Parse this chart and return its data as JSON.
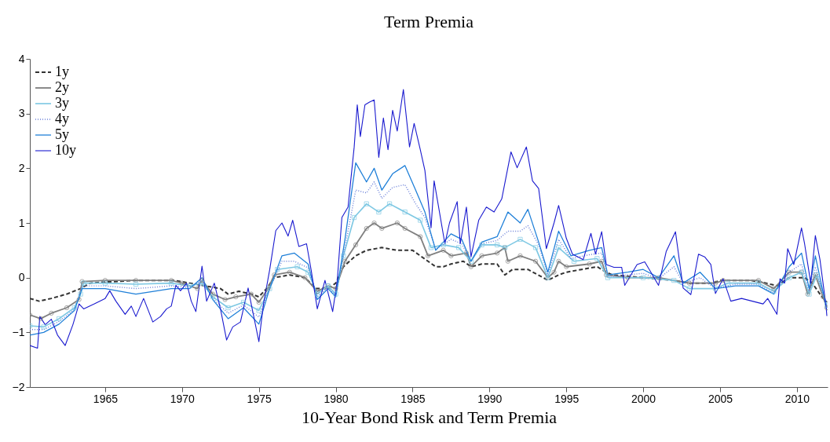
{
  "chart_data": {
    "type": "line",
    "title": "Term Premia",
    "xlabel": "10-Year Bond Risk and Term Premia",
    "xlim": [
      1960.1,
      2012.0
    ],
    "xticks": [
      1965,
      1970,
      1975,
      1980,
      1985,
      1990,
      1995,
      2000,
      2005,
      2010
    ],
    "ylim": [
      -2,
      4
    ],
    "yticks": [
      -2,
      -1,
      0,
      1,
      2,
      3,
      4
    ],
    "grid": false,
    "legend": "top left",
    "series": [
      {
        "name": "1y",
        "color": "#333333",
        "line_style": "dashed",
        "marker": "none",
        "x": [
          1960.1,
          1960.7,
          1961.5,
          1962.5,
          1963.4,
          1964,
          1965,
          1967,
          1969.5,
          1970.5,
          1971.5,
          1972.5,
          1973,
          1973.7,
          1974.5,
          1975,
          1975.5,
          1976,
          1977,
          1978,
          1978.7,
          1979.5,
          1980,
          1980.5,
          1981.3,
          1982,
          1983,
          1984,
          1985,
          1986,
          1986.5,
          1987,
          1987.5,
          1988.3,
          1988.8,
          1989.5,
          1990.5,
          1991,
          1991.5,
          1992.5,
          1993.5,
          1993.8,
          1994.5,
          1995,
          1996,
          1997,
          1997.6,
          1998,
          2000,
          2002,
          2003,
          2004.5,
          2005,
          2007,
          2008,
          2008.7,
          2009.5,
          2010.5,
          2011,
          2011.5,
          2011.95
        ],
        "values": [
          -0.38,
          -0.43,
          -0.38,
          -0.3,
          -0.2,
          -0.1,
          -0.08,
          -0.05,
          -0.05,
          -0.1,
          -0.15,
          -0.2,
          -0.3,
          -0.25,
          -0.3,
          -0.35,
          -0.2,
          0.0,
          0.05,
          0.0,
          -0.2,
          -0.2,
          -0.1,
          0.2,
          0.4,
          0.5,
          0.55,
          0.5,
          0.5,
          0.3,
          0.2,
          0.2,
          0.25,
          0.3,
          0.2,
          0.25,
          0.25,
          0.05,
          0.15,
          0.15,
          0.0,
          -0.05,
          0.05,
          0.1,
          0.15,
          0.2,
          0.1,
          0.05,
          0.0,
          -0.05,
          -0.1,
          -0.1,
          -0.05,
          -0.05,
          -0.1,
          -0.15,
          0.0,
          0.0,
          -0.1,
          -0.3,
          -0.45
        ]
      },
      {
        "name": "2y",
        "color": "#808080",
        "line_style": "solid",
        "marker": "circle",
        "x": [
          1960.1,
          1960.8,
          1961.5,
          1962.5,
          1963.3,
          1963.5,
          1965,
          1967,
          1969.3,
          1970,
          1971,
          1971.3,
          1972,
          1972.8,
          1973.5,
          1974.5,
          1975,
          1975.6,
          1976,
          1977,
          1978,
          1978.8,
          1979.5,
          1980,
          1980.6,
          1981.3,
          1982,
          1982.5,
          1983,
          1984,
          1984.5,
          1985.5,
          1986,
          1987,
          1987.5,
          1988.5,
          1988.8,
          1989.5,
          1990.5,
          1991,
          1991.2,
          1992,
          1993,
          1993.8,
          1994.2,
          1994.5,
          1995,
          1996.5,
          1997.3,
          1997.6,
          1999,
          2001,
          2003,
          2004.7,
          2005.2,
          2007.5,
          2008.5,
          2009.5,
          2010.3,
          2010.7,
          2011.2,
          2011.7,
          2011.95
        ],
        "values": [
          -0.68,
          -0.75,
          -0.65,
          -0.55,
          -0.4,
          -0.07,
          -0.05,
          -0.05,
          -0.05,
          -0.1,
          -0.2,
          -0.05,
          -0.3,
          -0.4,
          -0.35,
          -0.3,
          -0.45,
          -0.2,
          0.05,
          0.1,
          0.0,
          -0.25,
          -0.15,
          -0.2,
          0.3,
          0.6,
          0.9,
          1.0,
          0.9,
          1.0,
          0.9,
          0.75,
          0.4,
          0.5,
          0.4,
          0.45,
          0.2,
          0.4,
          0.45,
          0.55,
          0.3,
          0.4,
          0.3,
          0.0,
          0.1,
          0.3,
          0.2,
          0.25,
          0.3,
          0.05,
          0.0,
          0.0,
          -0.1,
          -0.1,
          -0.05,
          -0.05,
          -0.2,
          0.1,
          0.1,
          -0.3,
          0.05,
          -0.35,
          -0.55
        ]
      },
      {
        "name": "3y",
        "color": "#7ec8e3",
        "line_style": "solid",
        "marker": "square",
        "x": [
          1960.1,
          1961,
          1962,
          1963,
          1963.4,
          1963.6,
          1965,
          1967,
          1969.3,
          1970.5,
          1971.3,
          1972,
          1973,
          1974,
          1975,
          1975.7,
          1976.2,
          1977.5,
          1978.2,
          1978.8,
          1979.5,
          1980,
          1980.5,
          1981.2,
          1982,
          1982.8,
          1983.5,
          1984.5,
          1985.5,
          1986.2,
          1987,
          1988,
          1988.8,
          1989.5,
          1990.5,
          1991,
          1992,
          1993,
          1993.8,
          1994.5,
          1995.5,
          1997,
          1997.7,
          2000,
          2002,
          2003,
          2004.7,
          2005.5,
          2007.5,
          2008.5,
          2009.5,
          2010.3,
          2010.8,
          2011.3,
          2011.95
        ],
        "values": [
          -0.88,
          -0.9,
          -0.75,
          -0.55,
          -0.3,
          -0.1,
          -0.1,
          -0.12,
          -0.1,
          -0.15,
          -0.1,
          -0.35,
          -0.55,
          -0.45,
          -0.6,
          -0.2,
          0.15,
          0.2,
          0.1,
          -0.3,
          -0.15,
          -0.3,
          0.4,
          1.1,
          1.35,
          1.2,
          1.35,
          1.2,
          1.05,
          0.55,
          0.6,
          0.55,
          0.3,
          0.6,
          0.6,
          0.55,
          0.7,
          0.55,
          0.0,
          0.55,
          0.3,
          0.35,
          0.0,
          0.0,
          -0.05,
          -0.2,
          -0.2,
          -0.1,
          -0.1,
          -0.25,
          0.0,
          0.1,
          -0.3,
          0.05,
          -0.5
        ]
      },
      {
        "name": "4y",
        "color": "#6a7fd8",
        "line_style": "dotted",
        "marker": "none",
        "x": [
          1960.1,
          1961,
          1962,
          1963,
          1963.5,
          1965,
          1967,
          1969.3,
          1970.5,
          1971.3,
          1972,
          1973,
          1974,
          1975,
          1975.7,
          1976.5,
          1977.3,
          1978.2,
          1978.8,
          1979.5,
          1980,
          1980.6,
          1981.3,
          1982,
          1982.5,
          1983,
          1983.7,
          1984.5,
          1985.2,
          1985.8,
          1986.5,
          1987.5,
          1988.2,
          1988.8,
          1989.5,
          1990.5,
          1991.2,
          1992,
          1992.5,
          1993.2,
          1993.8,
          1994.5,
          1995.3,
          1996.5,
          1997.3,
          1997.7,
          1999,
          2000,
          2001,
          2002,
          2002.6,
          2003.7,
          2004.7,
          2006,
          2007.5,
          2008.5,
          2009.5,
          2010.3,
          2010.8,
          2011.2,
          2011.95
        ],
        "values": [
          -0.95,
          -0.95,
          -0.8,
          -0.58,
          -0.15,
          -0.15,
          -0.2,
          -0.15,
          -0.18,
          -0.05,
          -0.38,
          -0.65,
          -0.5,
          -0.72,
          -0.2,
          0.3,
          0.3,
          0.18,
          -0.35,
          -0.18,
          -0.32,
          0.55,
          1.6,
          1.55,
          1.75,
          1.45,
          1.65,
          1.7,
          1.35,
          1.1,
          0.52,
          0.7,
          0.62,
          0.3,
          0.62,
          0.68,
          0.85,
          0.85,
          0.95,
          0.6,
          0.05,
          0.7,
          0.35,
          0.42,
          0.45,
          0.02,
          0.05,
          0.08,
          -0.02,
          0.2,
          -0.1,
          0.0,
          -0.2,
          -0.12,
          -0.12,
          -0.28,
          0.1,
          0.25,
          -0.25,
          0.2,
          -0.55
        ]
      },
      {
        "name": "5y",
        "color": "#1e7fd8",
        "line_style": "solid",
        "marker": "none",
        "x": [
          1960.1,
          1961,
          1962,
          1963,
          1963.5,
          1965,
          1967,
          1969.3,
          1970.5,
          1971.3,
          1972,
          1973,
          1974,
          1975,
          1975.7,
          1976.5,
          1977.3,
          1978.2,
          1978.8,
          1979.5,
          1980,
          1980.6,
          1981.3,
          1982,
          1982.5,
          1983,
          1983.7,
          1984.5,
          1985.2,
          1985.8,
          1986.5,
          1987.5,
          1988.2,
          1988.8,
          1989.5,
          1990.5,
          1991.2,
          1992,
          1992.5,
          1993.2,
          1993.8,
          1994.5,
          1995.3,
          1996.5,
          1997.3,
          1997.7,
          1999,
          2000,
          2001,
          2002,
          2002.6,
          2003.7,
          2004.7,
          2006,
          2007.5,
          2008.5,
          2009.5,
          2010.3,
          2010.8,
          2011.2,
          2011.95
        ],
        "values": [
          -1.05,
          -1.0,
          -0.85,
          -0.6,
          -0.2,
          -0.2,
          -0.3,
          -0.2,
          -0.2,
          0.0,
          -0.4,
          -0.75,
          -0.55,
          -0.85,
          -0.2,
          0.4,
          0.45,
          0.25,
          -0.4,
          -0.2,
          -0.35,
          0.7,
          2.1,
          1.75,
          2.0,
          1.6,
          1.9,
          2.05,
          1.6,
          1.2,
          0.5,
          0.8,
          0.7,
          0.3,
          0.65,
          0.75,
          1.2,
          1.0,
          1.25,
          0.65,
          0.1,
          0.85,
          0.4,
          0.5,
          0.55,
          0.05,
          0.1,
          0.15,
          0.0,
          0.4,
          -0.1,
          0.1,
          -0.2,
          -0.15,
          -0.15,
          -0.3,
          0.2,
          0.45,
          -0.2,
          0.4,
          -0.6
        ]
      },
      {
        "name": "10y",
        "color": "#1a1acf",
        "line_style": "solid",
        "marker": "none",
        "x": [
          1960.1,
          1960.6,
          1960.75,
          1961.1,
          1961.5,
          1961.9,
          1962.4,
          1962.9,
          1963.3,
          1963.6,
          1964.3,
          1965,
          1965.3,
          1965.7,
          1966.3,
          1966.7,
          1967.0,
          1967.5,
          1968.1,
          1968.6,
          1969.0,
          1969.3,
          1969.6,
          1969.9,
          1970.3,
          1970.6,
          1970.9,
          1971.3,
          1971.6,
          1972.1,
          1972.5,
          1972.9,
          1973.3,
          1973.8,
          1974.3,
          1974.5,
          1975.0,
          1975.3,
          1975.7,
          1976.1,
          1976.5,
          1976.9,
          1977.2,
          1977.6,
          1978.1,
          1978.4,
          1978.8,
          1979.3,
          1979.8,
          1980.1,
          1980.4,
          1980.8,
          1981.2,
          1981.4,
          1981.6,
          1981.9,
          1982.2,
          1982.5,
          1982.8,
          1983.1,
          1983.4,
          1983.7,
          1984.0,
          1984.4,
          1984.8,
          1985.1,
          1985.5,
          1985.8,
          1986.2,
          1986.4,
          1987.1,
          1987.4,
          1987.9,
          1988.1,
          1988.5,
          1988.8,
          1989.3,
          1989.8,
          1990.3,
          1990.8,
          1991.4,
          1991.8,
          1992.4,
          1992.8,
          1993.2,
          1993.7,
          1994.2,
          1994.5,
          1995.0,
          1995.4,
          1996.1,
          1996.6,
          1996.9,
          1997.3,
          1997.6,
          1998.1,
          1998.6,
          1998.8,
          1999.6,
          2000.1,
          2000.5,
          2001.0,
          2001.5,
          2002.1,
          2002.3,
          2002.6,
          2003.1,
          2003.6,
          2004.0,
          2004.4,
          2004.7,
          2005.2,
          2005.7,
          2006.4,
          2007.1,
          2007.8,
          2008.1,
          2008.7,
          2008.9,
          2009.2,
          2009.4,
          2009.8,
          2010.3,
          2010.5,
          2010.9,
          2011.2,
          2011.5,
          2011.9,
          2011.95
        ],
        "values": [
          -1.24,
          -1.29,
          -0.71,
          -0.86,
          -0.76,
          -1.05,
          -1.24,
          -0.86,
          -0.48,
          -0.57,
          -0.48,
          -0.38,
          -0.24,
          -0.43,
          -0.67,
          -0.52,
          -0.71,
          -0.38,
          -0.81,
          -0.71,
          -0.57,
          -0.52,
          -0.14,
          -0.24,
          -0.1,
          -0.43,
          -0.62,
          0.21,
          -0.43,
          -0.1,
          -0.57,
          -1.14,
          -0.9,
          -0.81,
          -0.19,
          -0.48,
          -1.17,
          -0.48,
          0.14,
          0.86,
          1.0,
          0.76,
          1.05,
          0.57,
          0.62,
          0.14,
          -0.57,
          -0.05,
          -0.62,
          -0.05,
          1.1,
          1.29,
          2.39,
          3.16,
          2.58,
          3.16,
          3.21,
          3.25,
          2.2,
          2.92,
          2.34,
          3.06,
          2.68,
          3.44,
          2.39,
          2.82,
          2.34,
          1.96,
          0.91,
          1.77,
          0.62,
          1.0,
          1.39,
          0.62,
          1.29,
          0.38,
          1.05,
          1.29,
          1.2,
          1.44,
          2.3,
          2.01,
          2.39,
          1.77,
          1.63,
          0.53,
          1.0,
          1.32,
          0.72,
          0.43,
          0.33,
          0.81,
          0.43,
          0.84,
          0.24,
          0.19,
          0.19,
          -0.14,
          0.24,
          0.29,
          0.1,
          -0.14,
          0.48,
          0.84,
          0.43,
          -0.19,
          -0.31,
          0.43,
          0.38,
          0.24,
          -0.29,
          -0.02,
          -0.43,
          -0.38,
          -0.43,
          -0.48,
          -0.38,
          -0.67,
          -0.02,
          -0.1,
          0.53,
          0.24,
          0.91,
          0.62,
          -0.1,
          0.77,
          0.33,
          -0.53,
          -0.7
        ]
      }
    ]
  }
}
